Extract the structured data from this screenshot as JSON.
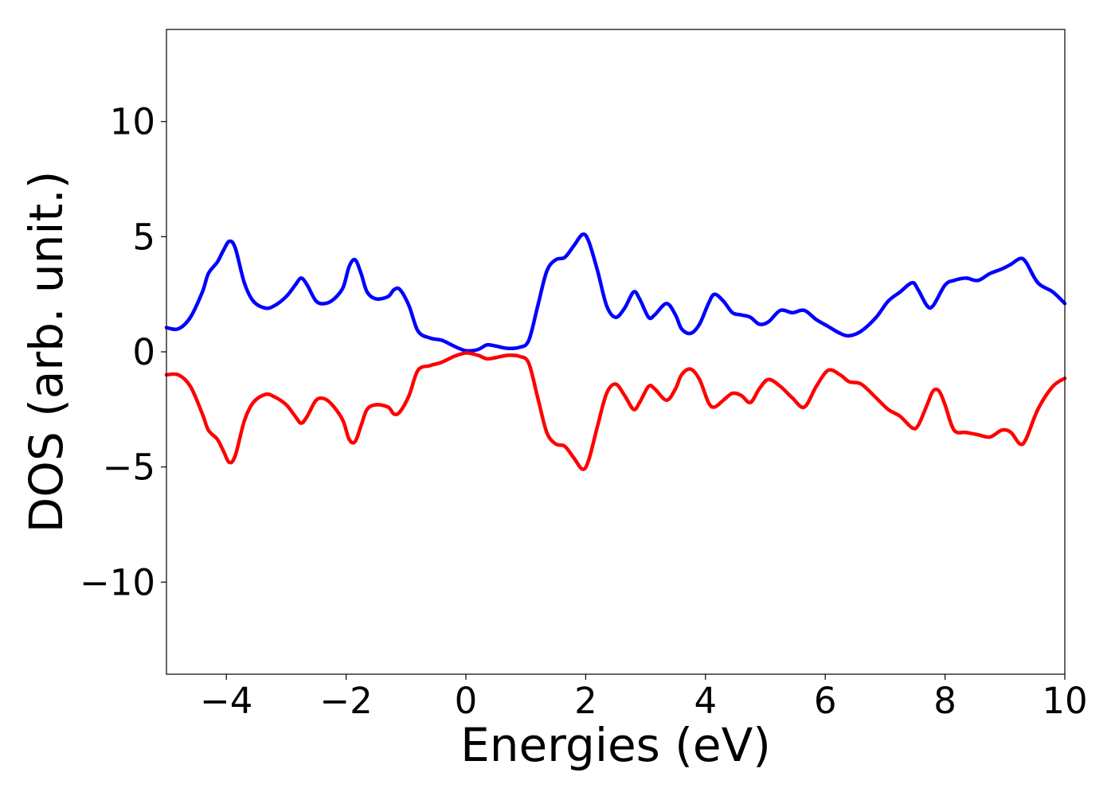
{
  "chart_data": {
    "type": "line",
    "title": "",
    "xlabel": "Energies (eV)",
    "ylabel": "DOS (arb. unit.)",
    "xlim": [
      -5,
      10
    ],
    "ylim": [
      -14,
      14
    ],
    "xticks": [
      {
        "value": -4,
        "label": "−4"
      },
      {
        "value": -2,
        "label": "−2"
      },
      {
        "value": 0,
        "label": "0"
      },
      {
        "value": 2,
        "label": "2"
      },
      {
        "value": 4,
        "label": "4"
      },
      {
        "value": 6,
        "label": "6"
      },
      {
        "value": 8,
        "label": "8"
      },
      {
        "value": 10,
        "label": "10"
      }
    ],
    "yticks": [
      {
        "value": -10,
        "label": "−10"
      },
      {
        "value": -5,
        "label": "−5"
      },
      {
        "value": 0,
        "label": "0"
      },
      {
        "value": 5,
        "label": "5"
      },
      {
        "value": 10,
        "label": "10"
      }
    ],
    "grid": false,
    "legend": "none",
    "series": [
      {
        "color": "#0000ff",
        "points": [
          [
            -5.0,
            1.05
          ],
          [
            -4.8,
            1.0
          ],
          [
            -4.6,
            1.5
          ],
          [
            -4.4,
            2.6
          ],
          [
            -4.3,
            3.4
          ],
          [
            -4.15,
            3.9
          ],
          [
            -4.05,
            4.4
          ],
          [
            -3.95,
            4.8
          ],
          [
            -3.85,
            4.5
          ],
          [
            -3.7,
            3.0
          ],
          [
            -3.55,
            2.2
          ],
          [
            -3.35,
            1.9
          ],
          [
            -3.2,
            2.0
          ],
          [
            -3.0,
            2.4
          ],
          [
            -2.85,
            2.9
          ],
          [
            -2.75,
            3.2
          ],
          [
            -2.65,
            2.9
          ],
          [
            -2.5,
            2.2
          ],
          [
            -2.35,
            2.1
          ],
          [
            -2.2,
            2.3
          ],
          [
            -2.05,
            2.8
          ],
          [
            -1.95,
            3.7
          ],
          [
            -1.85,
            4.0
          ],
          [
            -1.75,
            3.4
          ],
          [
            -1.65,
            2.6
          ],
          [
            -1.5,
            2.3
          ],
          [
            -1.3,
            2.4
          ],
          [
            -1.2,
            2.7
          ],
          [
            -1.1,
            2.7
          ],
          [
            -0.95,
            2.0
          ],
          [
            -0.8,
            0.9
          ],
          [
            -0.6,
            0.6
          ],
          [
            -0.4,
            0.5
          ],
          [
            -0.2,
            0.25
          ],
          [
            0.0,
            0.05
          ],
          [
            0.2,
            0.1
          ],
          [
            0.35,
            0.3
          ],
          [
            0.5,
            0.25
          ],
          [
            0.7,
            0.15
          ],
          [
            0.9,
            0.2
          ],
          [
            1.05,
            0.5
          ],
          [
            1.2,
            2.0
          ],
          [
            1.35,
            3.5
          ],
          [
            1.5,
            4.0
          ],
          [
            1.65,
            4.1
          ],
          [
            1.8,
            4.6
          ],
          [
            1.95,
            5.1
          ],
          [
            2.05,
            4.8
          ],
          [
            2.2,
            3.5
          ],
          [
            2.35,
            2.0
          ],
          [
            2.5,
            1.5
          ],
          [
            2.65,
            1.9
          ],
          [
            2.8,
            2.6
          ],
          [
            2.9,
            2.3
          ],
          [
            3.05,
            1.5
          ],
          [
            3.15,
            1.6
          ],
          [
            3.35,
            2.1
          ],
          [
            3.5,
            1.6
          ],
          [
            3.6,
            1.0
          ],
          [
            3.75,
            0.8
          ],
          [
            3.9,
            1.2
          ],
          [
            4.05,
            2.1
          ],
          [
            4.15,
            2.5
          ],
          [
            4.3,
            2.2
          ],
          [
            4.45,
            1.7
          ],
          [
            4.6,
            1.6
          ],
          [
            4.75,
            1.5
          ],
          [
            4.9,
            1.2
          ],
          [
            5.05,
            1.3
          ],
          [
            5.25,
            1.8
          ],
          [
            5.45,
            1.7
          ],
          [
            5.65,
            1.8
          ],
          [
            5.85,
            1.4
          ],
          [
            6.05,
            1.1
          ],
          [
            6.25,
            0.8
          ],
          [
            6.4,
            0.7
          ],
          [
            6.6,
            0.9
          ],
          [
            6.85,
            1.5
          ],
          [
            7.05,
            2.2
          ],
          [
            7.25,
            2.6
          ],
          [
            7.45,
            3.0
          ],
          [
            7.55,
            2.7
          ],
          [
            7.7,
            2.0
          ],
          [
            7.8,
            2.0
          ],
          [
            8.0,
            2.9
          ],
          [
            8.15,
            3.1
          ],
          [
            8.35,
            3.2
          ],
          [
            8.55,
            3.1
          ],
          [
            8.75,
            3.4
          ],
          [
            8.95,
            3.6
          ],
          [
            9.1,
            3.8
          ],
          [
            9.25,
            4.05
          ],
          [
            9.35,
            3.9
          ],
          [
            9.55,
            3.0
          ],
          [
            9.8,
            2.6
          ],
          [
            10.0,
            2.1
          ]
        ]
      },
      {
        "color": "#ff0000",
        "points": [
          [
            -5.0,
            -1.0
          ],
          [
            -4.8,
            -1.0
          ],
          [
            -4.6,
            -1.5
          ],
          [
            -4.4,
            -2.7
          ],
          [
            -4.3,
            -3.4
          ],
          [
            -4.15,
            -3.8
          ],
          [
            -4.05,
            -4.3
          ],
          [
            -3.95,
            -4.8
          ],
          [
            -3.85,
            -4.5
          ],
          [
            -3.7,
            -3.0
          ],
          [
            -3.55,
            -2.2
          ],
          [
            -3.35,
            -1.85
          ],
          [
            -3.2,
            -1.95
          ],
          [
            -3.0,
            -2.3
          ],
          [
            -2.85,
            -2.8
          ],
          [
            -2.75,
            -3.1
          ],
          [
            -2.65,
            -2.8
          ],
          [
            -2.5,
            -2.1
          ],
          [
            -2.35,
            -2.05
          ],
          [
            -2.2,
            -2.4
          ],
          [
            -2.05,
            -3.0
          ],
          [
            -1.95,
            -3.8
          ],
          [
            -1.85,
            -3.9
          ],
          [
            -1.75,
            -3.2
          ],
          [
            -1.65,
            -2.5
          ],
          [
            -1.5,
            -2.3
          ],
          [
            -1.3,
            -2.4
          ],
          [
            -1.2,
            -2.7
          ],
          [
            -1.1,
            -2.6
          ],
          [
            -0.95,
            -1.9
          ],
          [
            -0.8,
            -0.8
          ],
          [
            -0.6,
            -0.6
          ],
          [
            -0.4,
            -0.45
          ],
          [
            -0.2,
            -0.2
          ],
          [
            0.0,
            -0.05
          ],
          [
            0.2,
            -0.15
          ],
          [
            0.35,
            -0.3
          ],
          [
            0.5,
            -0.25
          ],
          [
            0.7,
            -0.15
          ],
          [
            0.9,
            -0.2
          ],
          [
            1.05,
            -0.5
          ],
          [
            1.2,
            -2.0
          ],
          [
            1.35,
            -3.5
          ],
          [
            1.5,
            -4.0
          ],
          [
            1.65,
            -4.1
          ],
          [
            1.8,
            -4.6
          ],
          [
            1.95,
            -5.1
          ],
          [
            2.05,
            -4.7
          ],
          [
            2.2,
            -3.2
          ],
          [
            2.35,
            -1.8
          ],
          [
            2.5,
            -1.4
          ],
          [
            2.65,
            -1.9
          ],
          [
            2.8,
            -2.5
          ],
          [
            2.9,
            -2.2
          ],
          [
            3.05,
            -1.5
          ],
          [
            3.15,
            -1.6
          ],
          [
            3.35,
            -2.1
          ],
          [
            3.5,
            -1.6
          ],
          [
            3.6,
            -1.0
          ],
          [
            3.75,
            -0.75
          ],
          [
            3.9,
            -1.2
          ],
          [
            4.05,
            -2.2
          ],
          [
            4.15,
            -2.4
          ],
          [
            4.3,
            -2.1
          ],
          [
            4.45,
            -1.8
          ],
          [
            4.6,
            -1.9
          ],
          [
            4.75,
            -2.2
          ],
          [
            4.9,
            -1.6
          ],
          [
            5.05,
            -1.2
          ],
          [
            5.25,
            -1.5
          ],
          [
            5.45,
            -2.0
          ],
          [
            5.65,
            -2.4
          ],
          [
            5.85,
            -1.5
          ],
          [
            6.05,
            -0.8
          ],
          [
            6.25,
            -1.0
          ],
          [
            6.4,
            -1.3
          ],
          [
            6.6,
            -1.4
          ],
          [
            6.85,
            -2.0
          ],
          [
            7.05,
            -2.5
          ],
          [
            7.25,
            -2.8
          ],
          [
            7.45,
            -3.3
          ],
          [
            7.55,
            -3.2
          ],
          [
            7.7,
            -2.3
          ],
          [
            7.8,
            -1.7
          ],
          [
            7.9,
            -1.7
          ],
          [
            8.0,
            -2.3
          ],
          [
            8.15,
            -3.4
          ],
          [
            8.35,
            -3.5
          ],
          [
            8.55,
            -3.6
          ],
          [
            8.75,
            -3.7
          ],
          [
            8.95,
            -3.4
          ],
          [
            9.1,
            -3.5
          ],
          [
            9.25,
            -4.0
          ],
          [
            9.35,
            -3.8
          ],
          [
            9.55,
            -2.5
          ],
          [
            9.8,
            -1.5
          ],
          [
            10.0,
            -1.15
          ]
        ]
      }
    ]
  }
}
